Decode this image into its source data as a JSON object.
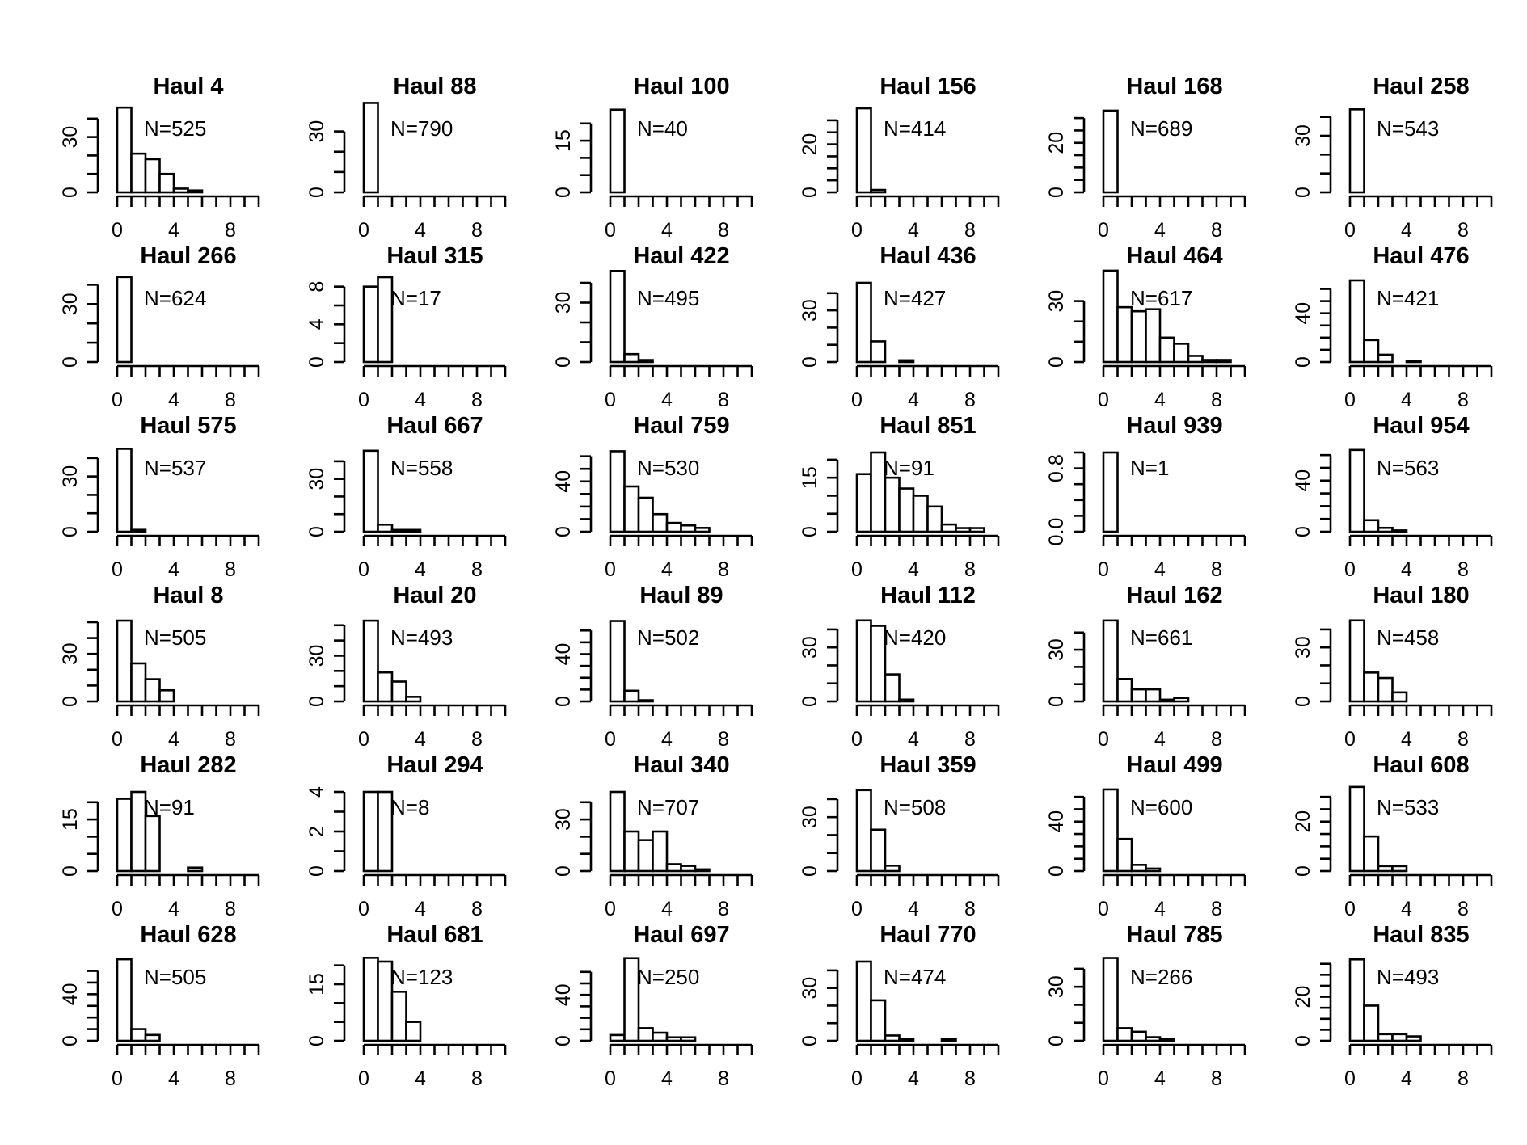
{
  "chart_data": {
    "type": "bar",
    "layout": {
      "rows": 6,
      "cols": 6
    },
    "panels": [
      {
        "title": "Haul 4",
        "n_label": "N=525",
        "counts": [
          46,
          21,
          18,
          10,
          2,
          1,
          0,
          0,
          0,
          0
        ],
        "y_ticks": [
          "0",
          "30"
        ],
        "y_max": 43,
        "minor": 10
      },
      {
        "title": "Haul 88",
        "n_label": "N=790",
        "counts": [
          44,
          0,
          0,
          0,
          0,
          0,
          0,
          0,
          0,
          0
        ],
        "y_ticks": [
          "0",
          "30"
        ],
        "y_max": 39,
        "minor": 10
      },
      {
        "title": "Haul 100",
        "n_label": "N=40",
        "counts": [
          24,
          0,
          0,
          0,
          0,
          0,
          0,
          0,
          0,
          0
        ],
        "y_ticks": [
          "0",
          "15"
        ],
        "y_max": 23,
        "minor": 5
      },
      {
        "title": "Haul 156",
        "n_label": "N=414",
        "counts": [
          35,
          1,
          0,
          0,
          0,
          0,
          0,
          0,
          0,
          0
        ],
        "y_ticks": [
          "0",
          "20"
        ],
        "y_max": 33,
        "minor": 5
      },
      {
        "title": "Haul 168",
        "n_label": "N=689",
        "counts": [
          33,
          0,
          0,
          0,
          0,
          0,
          0,
          0,
          0,
          0
        ],
        "y_ticks": [
          "0",
          "20"
        ],
        "y_max": 32,
        "minor": 5
      },
      {
        "title": "Haul 258",
        "n_label": "N=543",
        "counts": [
          44,
          0,
          0,
          0,
          0,
          0,
          0,
          0,
          0,
          0
        ],
        "y_ticks": [
          "0",
          "30"
        ],
        "y_max": 42,
        "minor": 10
      },
      {
        "title": "Haul 266",
        "n_label": "N=624",
        "counts": [
          44,
          0,
          0,
          0,
          0,
          0,
          0,
          0,
          0,
          0
        ],
        "y_ticks": [
          "0",
          "30"
        ],
        "y_max": 41,
        "minor": 10
      },
      {
        "title": "Haul 315",
        "n_label": "N=17",
        "counts": [
          8,
          9,
          0,
          0,
          0,
          0,
          0,
          0,
          0,
          0
        ],
        "y_ticks": [
          "0",
          "4",
          "8"
        ],
        "y_max": 8.4,
        "minor": 2
      },
      {
        "title": "Haul 422",
        "n_label": "N=495",
        "counts": [
          46,
          4,
          1,
          0,
          0,
          0,
          0,
          0,
          0,
          0
        ],
        "y_ticks": [
          "0",
          "30"
        ],
        "y_max": 40,
        "minor": 10
      },
      {
        "title": "Haul 436",
        "n_label": "N=427",
        "counts": [
          46,
          12,
          0,
          1,
          0,
          0,
          0,
          0,
          0,
          0
        ],
        "y_ticks": [
          "0",
          "30"
        ],
        "y_max": 46,
        "minor": 10
      },
      {
        "title": "Haul 464",
        "n_label": "N=617",
        "counts": [
          45,
          27,
          25,
          26,
          12,
          9,
          3,
          1,
          1,
          0
        ],
        "y_ticks": [
          "0",
          "30"
        ],
        "y_max": 39,
        "minor": 10
      },
      {
        "title": "Haul 476",
        "n_label": "N=421",
        "counts": [
          67,
          18,
          6,
          0,
          1,
          0,
          0,
          0,
          0,
          0
        ],
        "y_ticks": [
          "0",
          "40"
        ],
        "y_max": 65,
        "minor": 10
      },
      {
        "title": "Haul 575",
        "n_label": "N=537",
        "counts": [
          45,
          1,
          0,
          0,
          0,
          0,
          0,
          0,
          0,
          0
        ],
        "y_ticks": [
          "0",
          "30"
        ],
        "y_max": 43,
        "minor": 10
      },
      {
        "title": "Haul 667",
        "n_label": "N=558",
        "counts": [
          46,
          4,
          1,
          1,
          0,
          0,
          0,
          0,
          0,
          0
        ],
        "y_ticks": [
          "0",
          "30"
        ],
        "y_max": 45,
        "minor": 10
      },
      {
        "title": "Haul 759",
        "n_label": "N=530",
        "counts": [
          64,
          36,
          27,
          14,
          7,
          5,
          3,
          0,
          0,
          0
        ],
        "y_ticks": [
          "0",
          "40"
        ],
        "y_max": 63,
        "minor": 10
      },
      {
        "title": "Haul 851",
        "n_label": "N=91",
        "counts": [
          16,
          22,
          15,
          12,
          10,
          7,
          2,
          1,
          1,
          0
        ],
        "y_ticks": [
          "0",
          "15"
        ],
        "y_max": 22,
        "minor": 5
      },
      {
        "title": "Haul 939",
        "n_label": "N=1",
        "counts": [
          1,
          0,
          0,
          0,
          0,
          0,
          0,
          0,
          0,
          0
        ],
        "y_ticks": [
          "0.0",
          "0.8"
        ],
        "y_max": 1,
        "minor": 0.2
      },
      {
        "title": "Haul 954",
        "n_label": "N=563",
        "counts": [
          64,
          9,
          3,
          1,
          0,
          0,
          0,
          0,
          0,
          0
        ],
        "y_ticks": [
          "0",
          "40"
        ],
        "y_max": 62,
        "minor": 10
      },
      {
        "title": "Haul 8",
        "n_label": "N=505",
        "counts": [
          51,
          24,
          14,
          7,
          0,
          0,
          0,
          0,
          0,
          0
        ],
        "y_ticks": [
          "0",
          "30"
        ],
        "y_max": 50,
        "minor": 10
      },
      {
        "title": "Haul 20",
        "n_label": "N=493",
        "counts": [
          53,
          19,
          13,
          3,
          0,
          0,
          0,
          0,
          0,
          0
        ],
        "y_ticks": [
          "0",
          "30"
        ],
        "y_max": 52,
        "minor": 10
      },
      {
        "title": "Haul 89",
        "n_label": "N=502",
        "counts": [
          68,
          9,
          1,
          0,
          0,
          0,
          0,
          0,
          0,
          0
        ],
        "y_ticks": [
          "0",
          "40"
        ],
        "y_max": 67,
        "minor": 10
      },
      {
        "title": "Haul 112",
        "n_label": "N=420",
        "counts": [
          45,
          42,
          15,
          1,
          0,
          0,
          0,
          0,
          0,
          0
        ],
        "y_ticks": [
          "0",
          "30"
        ],
        "y_max": 44,
        "minor": 10
      },
      {
        "title": "Haul 162",
        "n_label": "N=661",
        "counts": [
          47,
          13,
          7,
          7,
          1,
          2,
          0,
          0,
          0,
          0
        ],
        "y_ticks": [
          "0",
          "30"
        ],
        "y_max": 46,
        "minor": 10
      },
      {
        "title": "Haul 180",
        "n_label": "N=458",
        "counts": [
          45,
          16,
          13,
          5,
          0,
          0,
          0,
          0,
          0,
          0
        ],
        "y_ticks": [
          "0",
          "30"
        ],
        "y_max": 44,
        "minor": 10
      },
      {
        "title": "Haul 282",
        "n_label": "N=91",
        "counts": [
          21,
          23,
          16,
          0,
          0,
          1,
          0,
          0,
          0,
          0
        ],
        "y_ticks": [
          "0",
          "15"
        ],
        "y_max": 23,
        "minor": 5
      },
      {
        "title": "Haul 294",
        "n_label": "N=8",
        "counts": [
          4,
          4,
          0,
          0,
          0,
          0,
          0,
          0,
          0,
          0
        ],
        "y_ticks": [
          "0",
          "2",
          "4"
        ],
        "y_max": 4,
        "minor": 1
      },
      {
        "title": "Haul 340",
        "n_label": "N=707",
        "counts": [
          46,
          23,
          18,
          23,
          4,
          3,
          1,
          0,
          0,
          0
        ],
        "y_ticks": [
          "0",
          "30"
        ],
        "y_max": 46,
        "minor": 10
      },
      {
        "title": "Haul 359",
        "n_label": "N=508",
        "counts": [
          45,
          23,
          3,
          0,
          0,
          0,
          0,
          0,
          0,
          0
        ],
        "y_ticks": [
          "0",
          "30"
        ],
        "y_max": 44,
        "minor": 10
      },
      {
        "title": "Haul 499",
        "n_label": "N=600",
        "counts": [
          66,
          26,
          5,
          2,
          0,
          0,
          0,
          0,
          0,
          0
        ],
        "y_ticks": [
          "0",
          "40"
        ],
        "y_max": 64,
        "minor": 10
      },
      {
        "title": "Haul 608",
        "n_label": "N=533",
        "counts": [
          34,
          14,
          2,
          2,
          0,
          0,
          0,
          0,
          0,
          0
        ],
        "y_ticks": [
          "0",
          "20"
        ],
        "y_max": 32,
        "minor": 5
      },
      {
        "title": "Haul 628",
        "n_label": "N=505",
        "counts": [
          70,
          10,
          5,
          0,
          0,
          0,
          0,
          0,
          0,
          0
        ],
        "y_ticks": [
          "0",
          "40"
        ],
        "y_max": 68,
        "minor": 10
      },
      {
        "title": "Haul 681",
        "n_label": "N=123",
        "counts": [
          22,
          21,
          13,
          5,
          0,
          0,
          0,
          0,
          0,
          0
        ],
        "y_ticks": [
          "0",
          "15"
        ],
        "y_max": 21,
        "minor": 5
      },
      {
        "title": "Haul 697",
        "n_label": "N=250",
        "counts": [
          5,
          72,
          11,
          7,
          3,
          3,
          0,
          0,
          0,
          0
        ],
        "y_ticks": [
          "0",
          "40"
        ],
        "y_max": 69,
        "minor": 10
      },
      {
        "title": "Haul 770",
        "n_label": "N=474",
        "counts": [
          45,
          23,
          3,
          1,
          0,
          0,
          1,
          0,
          0,
          0
        ],
        "y_ticks": [
          "0",
          "30"
        ],
        "y_max": 45,
        "minor": 10
      },
      {
        "title": "Haul 785",
        "n_label": "N=266",
        "counts": [
          46,
          7,
          5,
          2,
          1,
          0,
          0,
          0,
          0,
          0
        ],
        "y_ticks": [
          "0",
          "30"
        ],
        "y_max": 44,
        "minor": 10
      },
      {
        "title": "Haul 835",
        "n_label": "N=493",
        "counts": [
          37,
          16,
          3,
          3,
          2,
          0,
          0,
          0,
          0,
          0
        ],
        "y_ticks": [
          "0",
          "20"
        ],
        "y_max": 36,
        "minor": 5
      }
    ],
    "x_tick_labels": [
      "0",
      "4",
      "8"
    ],
    "xlim": [
      0,
      10
    ],
    "bin_width": 1
  }
}
